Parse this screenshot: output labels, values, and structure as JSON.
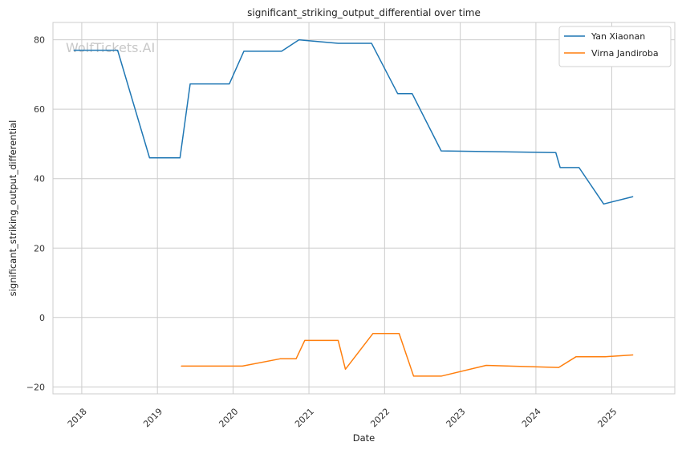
{
  "watermark": "WolfTickets.AI",
  "chart_data": {
    "type": "line",
    "title": "significant_striking_output_differential over time",
    "xlabel": "Date",
    "ylabel": "significant_striking_output_differential",
    "xlim": [
      "2017-08-15",
      "2025-11-01"
    ],
    "ylim": [
      -22,
      85
    ],
    "x_ticks": [
      "2018",
      "2019",
      "2020",
      "2021",
      "2022",
      "2023",
      "2024",
      "2025"
    ],
    "y_ticks": [
      -20,
      0,
      20,
      40,
      60,
      80
    ],
    "grid": true,
    "legend_position": "top-right",
    "series": [
      {
        "name": "Yan Xiaonan",
        "color": "#1f77b4",
        "points": [
          [
            "2017-11-25",
            77.0
          ],
          [
            "2018-06-23",
            77.0
          ],
          [
            "2018-11-24",
            46.0
          ],
          [
            "2019-04-20",
            46.0
          ],
          [
            "2019-06-08",
            67.3
          ],
          [
            "2019-12-14",
            67.3
          ],
          [
            "2020-02-22",
            76.7
          ],
          [
            "2020-08-22",
            76.7
          ],
          [
            "2020-11-14",
            80.0
          ],
          [
            "2020-12-19",
            79.8
          ],
          [
            "2021-05-22",
            79.0
          ],
          [
            "2021-10-30",
            79.0
          ],
          [
            "2022-03-05",
            64.5
          ],
          [
            "2022-05-14",
            64.5
          ],
          [
            "2022-10-01",
            48.0
          ],
          [
            "2024-04-06",
            47.5
          ],
          [
            "2024-04-27",
            43.2
          ],
          [
            "2024-07-27",
            43.2
          ],
          [
            "2024-11-23",
            32.7
          ],
          [
            "2025-04-12",
            34.8
          ]
        ]
      },
      {
        "name": "Virna Jandiroba",
        "color": "#ff7f0e",
        "points": [
          [
            "2019-04-27",
            -14.0
          ],
          [
            "2020-02-15",
            -14.0
          ],
          [
            "2020-08-15",
            -11.9
          ],
          [
            "2020-10-31",
            -11.9
          ],
          [
            "2020-12-12",
            -6.6
          ],
          [
            "2021-05-22",
            -6.6
          ],
          [
            "2021-06-26",
            -14.9
          ],
          [
            "2021-11-06",
            -4.6
          ],
          [
            "2022-03-12",
            -4.6
          ],
          [
            "2022-05-21",
            -16.9
          ],
          [
            "2022-10-01",
            -16.9
          ],
          [
            "2023-05-06",
            -13.8
          ],
          [
            "2024-04-20",
            -14.4
          ],
          [
            "2024-07-13",
            -11.3
          ],
          [
            "2024-11-30",
            -11.3
          ],
          [
            "2025-04-12",
            -10.8
          ]
        ]
      }
    ]
  }
}
